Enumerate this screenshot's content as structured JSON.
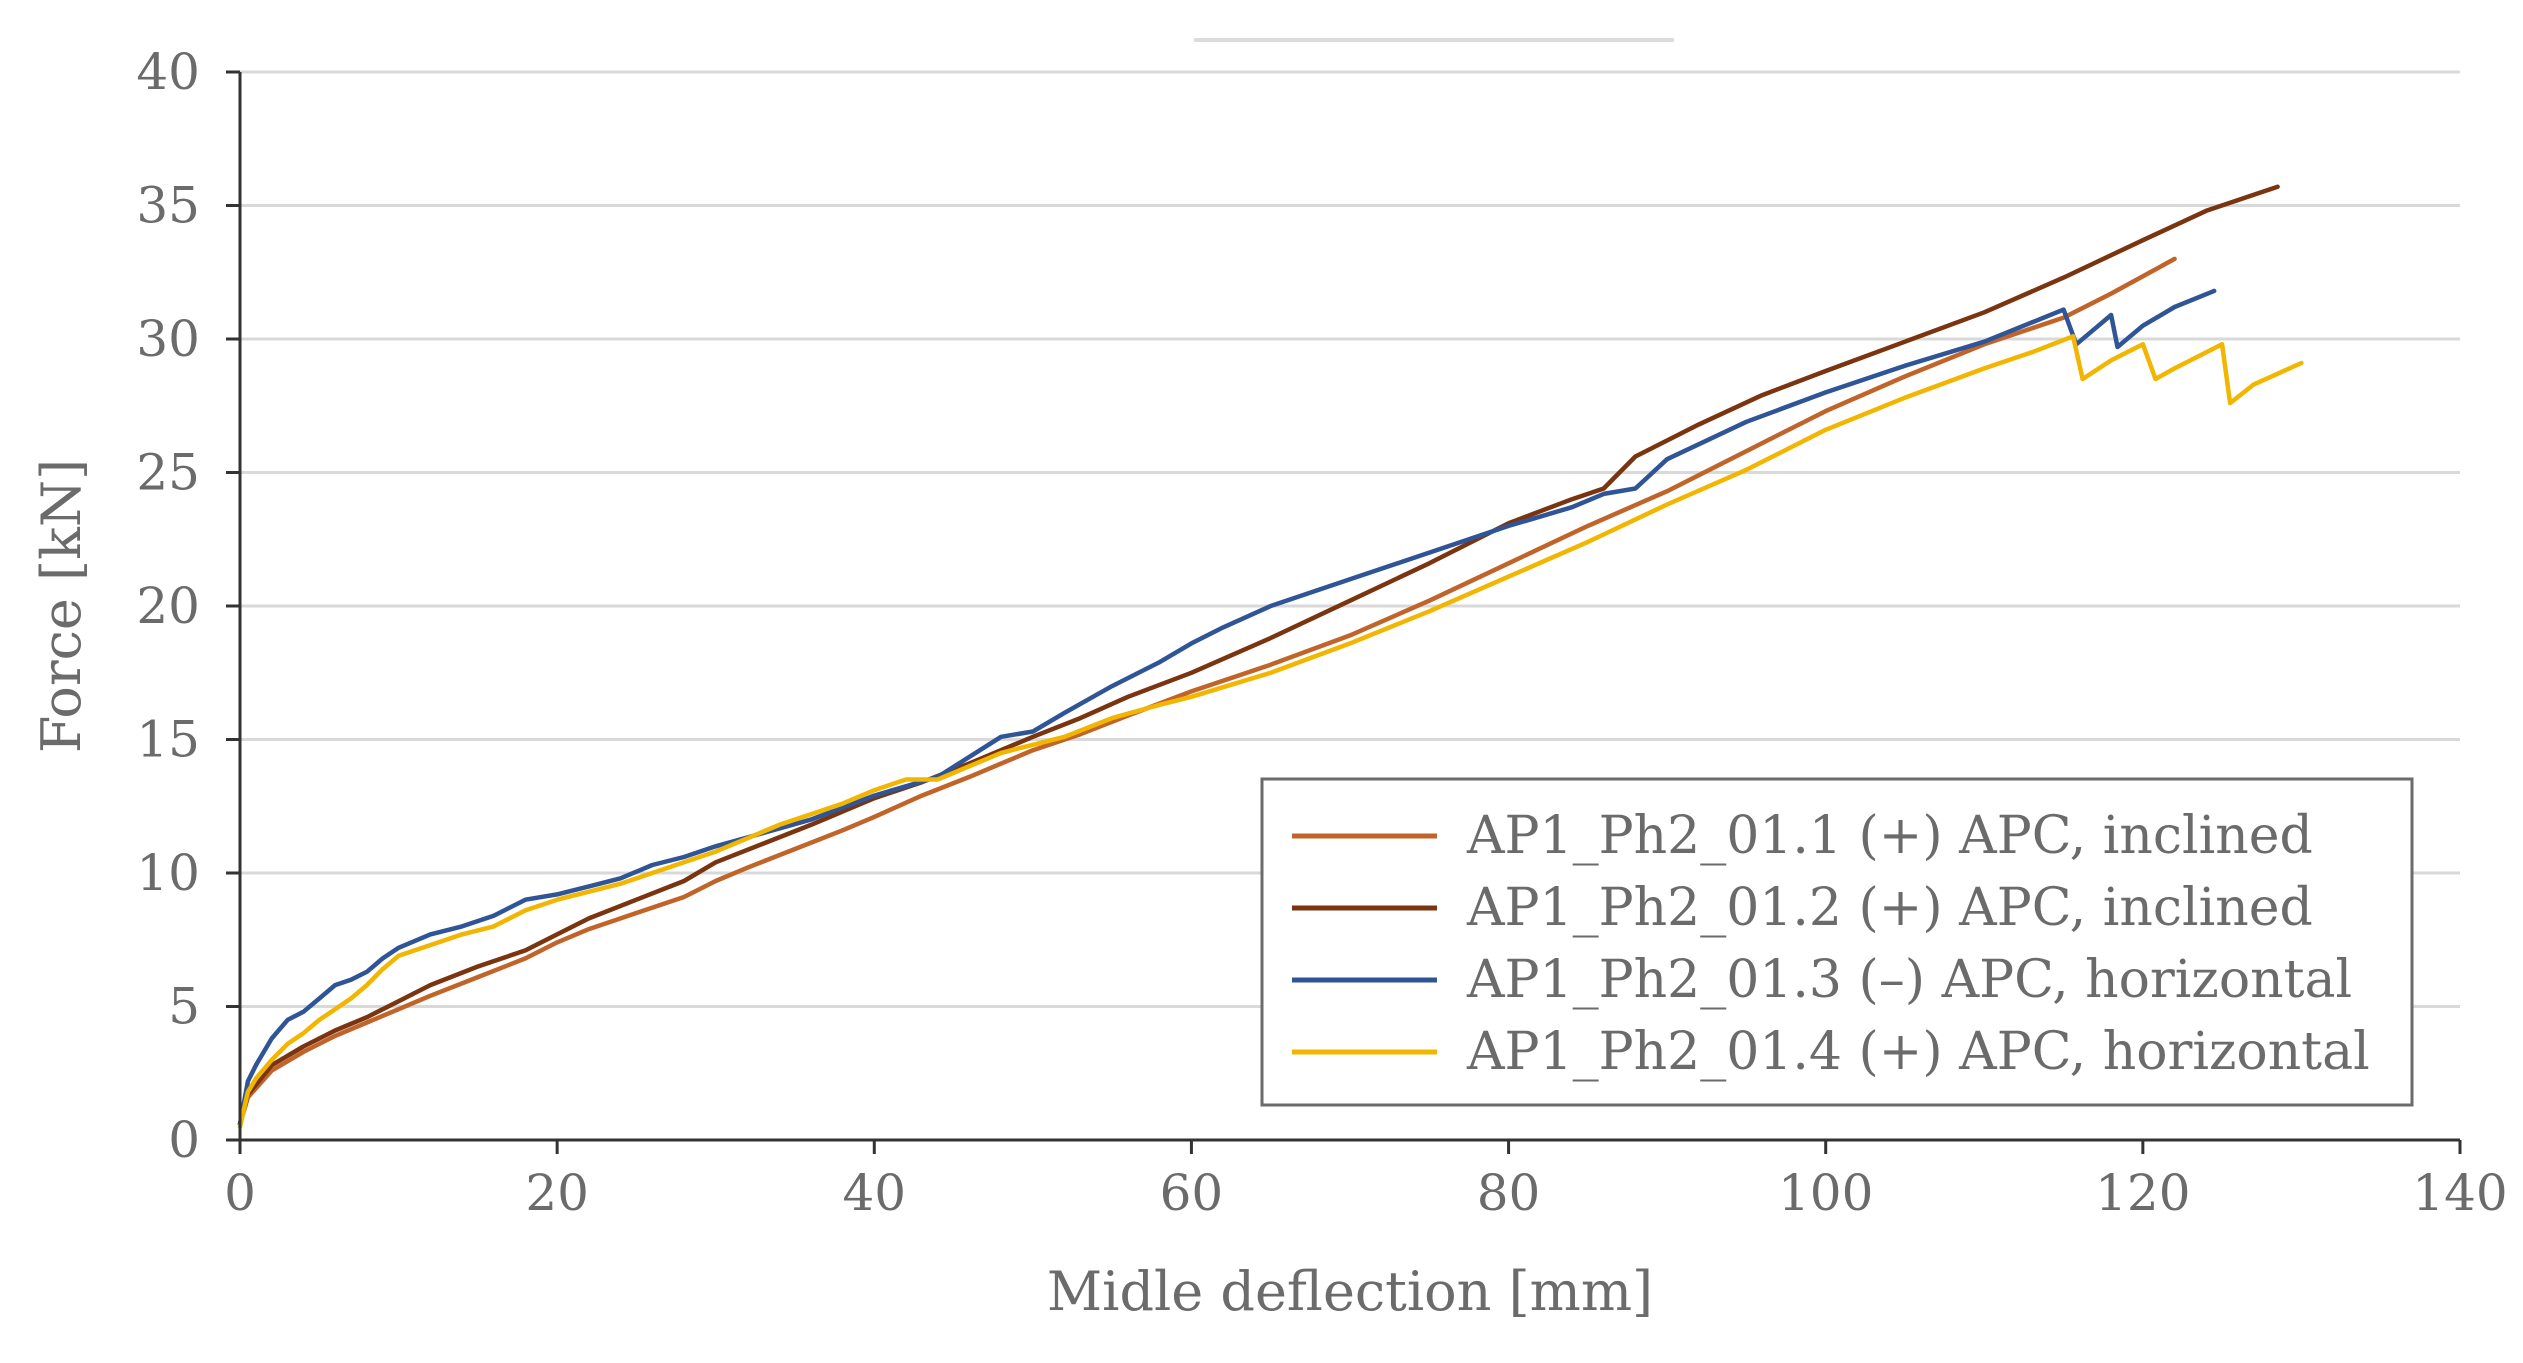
{
  "chart_data": {
    "type": "line",
    "title": "",
    "xlabel": "Midle deflection [mm]",
    "ylabel": "Force [kN]",
    "xlim": [
      0,
      140
    ],
    "ylim": [
      0,
      40
    ],
    "xticks": [
      0,
      20,
      40,
      60,
      80,
      100,
      120,
      140
    ],
    "yticks": [
      0,
      5,
      10,
      15,
      20,
      25,
      30,
      35,
      40
    ],
    "xtick_labels": [
      "0",
      "20",
      "40",
      "60",
      "80",
      "100",
      "120",
      "140"
    ],
    "ytick_labels": [
      "0",
      "5",
      "10",
      "15",
      "20",
      "25",
      "30",
      "35",
      "40"
    ],
    "grid": "horizontal",
    "legend_position": "bottom-right",
    "series": [
      {
        "name": "AP1_Ph2_01.1 (+) APC, inclined",
        "color": "#c0642a",
        "points": [
          [
            0,
            0.6
          ],
          [
            0.5,
            1.6
          ],
          [
            2,
            2.6
          ],
          [
            4,
            3.3
          ],
          [
            6,
            3.9
          ],
          [
            8,
            4.4
          ],
          [
            10,
            4.9
          ],
          [
            12,
            5.4
          ],
          [
            15,
            6.1
          ],
          [
            18,
            6.8
          ],
          [
            20,
            7.4
          ],
          [
            22,
            7.9
          ],
          [
            25,
            8.5
          ],
          [
            28,
            9.1
          ],
          [
            30,
            9.7
          ],
          [
            32,
            10.2
          ],
          [
            35,
            10.9
          ],
          [
            38,
            11.6
          ],
          [
            40,
            12.1
          ],
          [
            43,
            12.9
          ],
          [
            46,
            13.6
          ],
          [
            50,
            14.6
          ],
          [
            53,
            15.2
          ],
          [
            56,
            15.9
          ],
          [
            60,
            16.8
          ],
          [
            65,
            17.8
          ],
          [
            70,
            18.9
          ],
          [
            75,
            20.2
          ],
          [
            80,
            21.6
          ],
          [
            85,
            23.0
          ],
          [
            90,
            24.3
          ],
          [
            95,
            25.8
          ],
          [
            100,
            27.3
          ],
          [
            105,
            28.6
          ],
          [
            110,
            29.8
          ],
          [
            115,
            30.8
          ],
          [
            118,
            31.7
          ],
          [
            122,
            33.0
          ]
        ]
      },
      {
        "name": "AP1_Ph2_01.2 (+) APC, inclined",
        "color": "#7a3510",
        "points": [
          [
            0,
            0.6
          ],
          [
            0.5,
            1.7
          ],
          [
            2,
            2.8
          ],
          [
            4,
            3.5
          ],
          [
            6,
            4.1
          ],
          [
            8,
            4.6
          ],
          [
            10,
            5.2
          ],
          [
            12,
            5.8
          ],
          [
            15,
            6.5
          ],
          [
            18,
            7.1
          ],
          [
            20,
            7.7
          ],
          [
            22,
            8.3
          ],
          [
            25,
            9.0
          ],
          [
            28,
            9.7
          ],
          [
            30,
            10.4
          ],
          [
            33,
            11.1
          ],
          [
            36,
            11.8
          ],
          [
            40,
            12.8
          ],
          [
            43,
            13.4
          ],
          [
            46,
            14.1
          ],
          [
            50,
            15.1
          ],
          [
            53,
            15.8
          ],
          [
            56,
            16.6
          ],
          [
            60,
            17.5
          ],
          [
            65,
            18.8
          ],
          [
            70,
            20.2
          ],
          [
            75,
            21.6
          ],
          [
            80,
            23.1
          ],
          [
            84,
            24.0
          ],
          [
            86,
            24.4
          ],
          [
            88,
            25.6
          ],
          [
            92,
            26.8
          ],
          [
            96,
            27.9
          ],
          [
            100,
            28.8
          ],
          [
            105,
            29.9
          ],
          [
            110,
            31.0
          ],
          [
            115,
            32.3
          ],
          [
            120,
            33.7
          ],
          [
            124,
            34.8
          ],
          [
            128.5,
            35.7
          ]
        ]
      },
      {
        "name": "AP1_Ph2_01.3 (–) APC, horizontal",
        "color": "#2f5597",
        "points": [
          [
            0,
            0.6
          ],
          [
            0.5,
            2.2
          ],
          [
            1,
            2.8
          ],
          [
            2,
            3.8
          ],
          [
            3,
            4.5
          ],
          [
            4,
            4.8
          ],
          [
            5,
            5.3
          ],
          [
            6,
            5.8
          ],
          [
            7,
            6.0
          ],
          [
            8,
            6.3
          ],
          [
            9,
            6.8
          ],
          [
            10,
            7.2
          ],
          [
            12,
            7.7
          ],
          [
            14,
            8.0
          ],
          [
            16,
            8.4
          ],
          [
            18,
            9.0
          ],
          [
            20,
            9.2
          ],
          [
            22,
            9.5
          ],
          [
            24,
            9.8
          ],
          [
            26,
            10.3
          ],
          [
            28,
            10.6
          ],
          [
            30,
            11.0
          ],
          [
            33,
            11.5
          ],
          [
            36,
            12.0
          ],
          [
            40,
            12.9
          ],
          [
            44,
            13.6
          ],
          [
            48,
            15.1
          ],
          [
            50,
            15.3
          ],
          [
            52,
            16.0
          ],
          [
            55,
            17.0
          ],
          [
            58,
            17.9
          ],
          [
            60,
            18.6
          ],
          [
            62,
            19.2
          ],
          [
            65,
            20.0
          ],
          [
            70,
            21.0
          ],
          [
            75,
            22.0
          ],
          [
            80,
            23.0
          ],
          [
            84,
            23.7
          ],
          [
            86,
            24.2
          ],
          [
            88,
            24.4
          ],
          [
            90,
            25.5
          ],
          [
            95,
            26.9
          ],
          [
            100,
            28.0
          ],
          [
            105,
            29.0
          ],
          [
            110,
            29.9
          ],
          [
            115,
            31.1
          ],
          [
            115.8,
            29.8
          ],
          [
            117,
            30.4
          ],
          [
            118,
            30.9
          ],
          [
            118.4,
            29.7
          ],
          [
            120,
            30.5
          ],
          [
            122,
            31.2
          ],
          [
            124.5,
            31.8
          ]
        ]
      },
      {
        "name": "AP1_Ph2_01.4 (+) APC, horizontal",
        "color": "#f2b500",
        "points": [
          [
            0,
            0.5
          ],
          [
            0.5,
            1.8
          ],
          [
            1,
            2.3
          ],
          [
            2,
            3.0
          ],
          [
            3,
            3.6
          ],
          [
            4,
            4.0
          ],
          [
            5,
            4.5
          ],
          [
            6,
            4.9
          ],
          [
            7,
            5.3
          ],
          [
            8,
            5.8
          ],
          [
            9,
            6.4
          ],
          [
            10,
            6.9
          ],
          [
            12,
            7.3
          ],
          [
            14,
            7.7
          ],
          [
            16,
            8.0
          ],
          [
            18,
            8.6
          ],
          [
            20,
            9.0
          ],
          [
            22,
            9.3
          ],
          [
            24,
            9.6
          ],
          [
            26,
            10.0
          ],
          [
            28,
            10.4
          ],
          [
            30,
            10.8
          ],
          [
            32,
            11.3
          ],
          [
            34,
            11.8
          ],
          [
            36,
            12.2
          ],
          [
            38,
            12.6
          ],
          [
            40,
            13.1
          ],
          [
            42,
            13.5
          ],
          [
            44,
            13.5
          ],
          [
            46,
            14.0
          ],
          [
            48,
            14.5
          ],
          [
            50,
            14.8
          ],
          [
            52,
            15.1
          ],
          [
            55,
            15.8
          ],
          [
            58,
            16.3
          ],
          [
            60,
            16.6
          ],
          [
            65,
            17.5
          ],
          [
            70,
            18.6
          ],
          [
            75,
            19.8
          ],
          [
            80,
            21.1
          ],
          [
            85,
            22.4
          ],
          [
            90,
            23.8
          ],
          [
            95,
            25.1
          ],
          [
            100,
            26.6
          ],
          [
            105,
            27.8
          ],
          [
            110,
            28.9
          ],
          [
            113,
            29.5
          ],
          [
            115.6,
            30.1
          ],
          [
            116.2,
            28.5
          ],
          [
            118,
            29.2
          ],
          [
            120,
            29.8
          ],
          [
            120.8,
            28.5
          ],
          [
            122,
            28.9
          ],
          [
            125,
            29.8
          ],
          [
            125.5,
            27.6
          ],
          [
            127,
            28.3
          ],
          [
            130,
            29.1
          ]
        ]
      }
    ]
  }
}
